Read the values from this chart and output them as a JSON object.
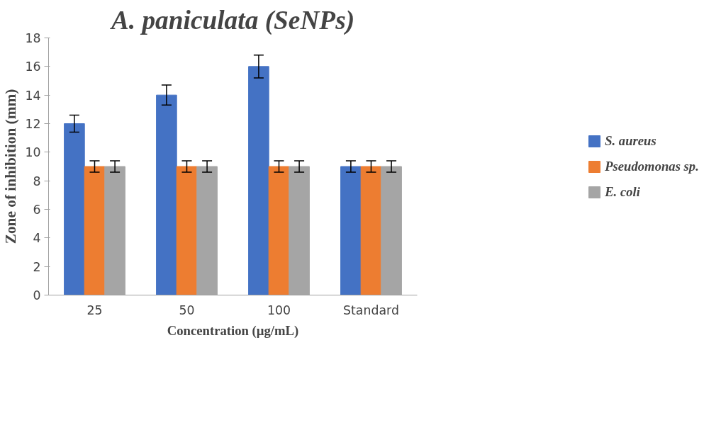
{
  "chart_data": {
    "type": "bar",
    "title": "A. paniculata (SeNPs)",
    "xlabel": "Concentration (µg/mL)",
    "ylabel": "Zone of inhibition (mm)",
    "categories": [
      "25",
      "50",
      "100",
      "Standard"
    ],
    "series": [
      {
        "name": "S. aureus",
        "color": "#4472c4",
        "values": [
          12,
          14,
          16,
          9
        ],
        "errors": [
          0.6,
          0.7,
          0.8,
          0.4
        ]
      },
      {
        "name": "Pseudomonas sp.",
        "color": "#ed7d31",
        "values": [
          9,
          9,
          9,
          9
        ],
        "errors": [
          0.4,
          0.4,
          0.4,
          0.4
        ]
      },
      {
        "name": "E. coli",
        "color": "#a5a5a5",
        "values": [
          9,
          9,
          9,
          9
        ],
        "errors": [
          0.4,
          0.4,
          0.4,
          0.4
        ]
      }
    ],
    "ylim": [
      0,
      18
    ],
    "yticks": [
      0,
      2,
      4,
      6,
      8,
      10,
      12,
      14,
      16,
      18
    ],
    "grid": false,
    "legend": "right"
  }
}
